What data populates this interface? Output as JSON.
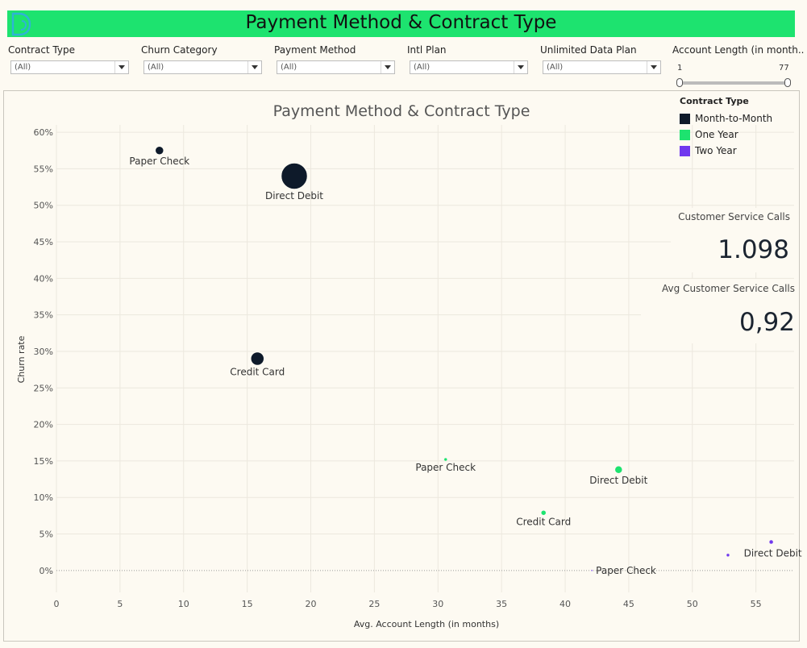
{
  "header": {
    "title": "Payment Method & Contract Type"
  },
  "filters": [
    {
      "label": "Contract Type",
      "value": "(All)"
    },
    {
      "label": "Churn Category",
      "value": "(All)"
    },
    {
      "label": "Payment Method",
      "value": "(All)"
    },
    {
      "label": "Intl Plan",
      "value": "(All)"
    },
    {
      "label": "Unlimited Data Plan",
      "value": "(All)"
    }
  ],
  "slider": {
    "label": "Account Length (in month..",
    "min": "1",
    "max": "77"
  },
  "legend": {
    "title": "Contract Type",
    "items": [
      {
        "label": "Month-to-Month",
        "color": "#0e1a2a"
      },
      {
        "label": "One Year",
        "color": "#1de36f"
      },
      {
        "label": "Two Year",
        "color": "#7038ee"
      }
    ]
  },
  "kpis": {
    "customer_service_calls": {
      "title": "Customer Service Calls",
      "value": "1.098"
    },
    "avg_customer_service_calls": {
      "title": "Avg Customer Service Calls",
      "value": "0,92"
    }
  },
  "chart_data": {
    "type": "scatter",
    "title": "Payment Method & Contract Type",
    "xlabel": "Avg. Account Length (in months)",
    "ylabel": "Churn rate",
    "xlim": [
      0,
      58
    ],
    "ylim": [
      -3,
      61
    ],
    "xticks": [
      "0",
      "5",
      "10",
      "15",
      "20",
      "25",
      "30",
      "35",
      "40",
      "45",
      "50",
      "55"
    ],
    "yticks": [
      "0%",
      "5%",
      "10%",
      "15%",
      "20%",
      "25%",
      "30%",
      "35%",
      "40%",
      "45%",
      "50%",
      "55%",
      "60%"
    ],
    "grid": true,
    "legend_position": "top-right",
    "points": [
      {
        "label": "Paper Check",
        "series": "Month-to-Month",
        "x": 8.1,
        "y": 57.5,
        "size": 5.5
      },
      {
        "label": "Direct Debit",
        "series": "Month-to-Month",
        "x": 18.7,
        "y": 54,
        "size": 16.5
      },
      {
        "label": "Credit Card",
        "series": "Month-to-Month",
        "x": 15.8,
        "y": 29,
        "size": 8.5
      },
      {
        "label": "Paper Check",
        "series": "One Year",
        "x": 30.6,
        "y": 15.2,
        "size": 2
      },
      {
        "label": "Direct Debit",
        "series": "One Year",
        "x": 44.2,
        "y": 13.8,
        "size": 5
      },
      {
        "label": "Credit Card",
        "series": "One Year",
        "x": 38.3,
        "y": 7.9,
        "size": 3.5
      },
      {
        "label": "Paper Check",
        "series": "Two Year",
        "x": 42.1,
        "y": 0,
        "size": 1
      },
      {
        "label": "",
        "series": "Two Year",
        "x": 52.8,
        "y": 2.1,
        "size": 2
      },
      {
        "label": "Direct Debit",
        "series": "Two Year",
        "x": 56.2,
        "y": 3.9,
        "size": 2.5
      }
    ]
  }
}
